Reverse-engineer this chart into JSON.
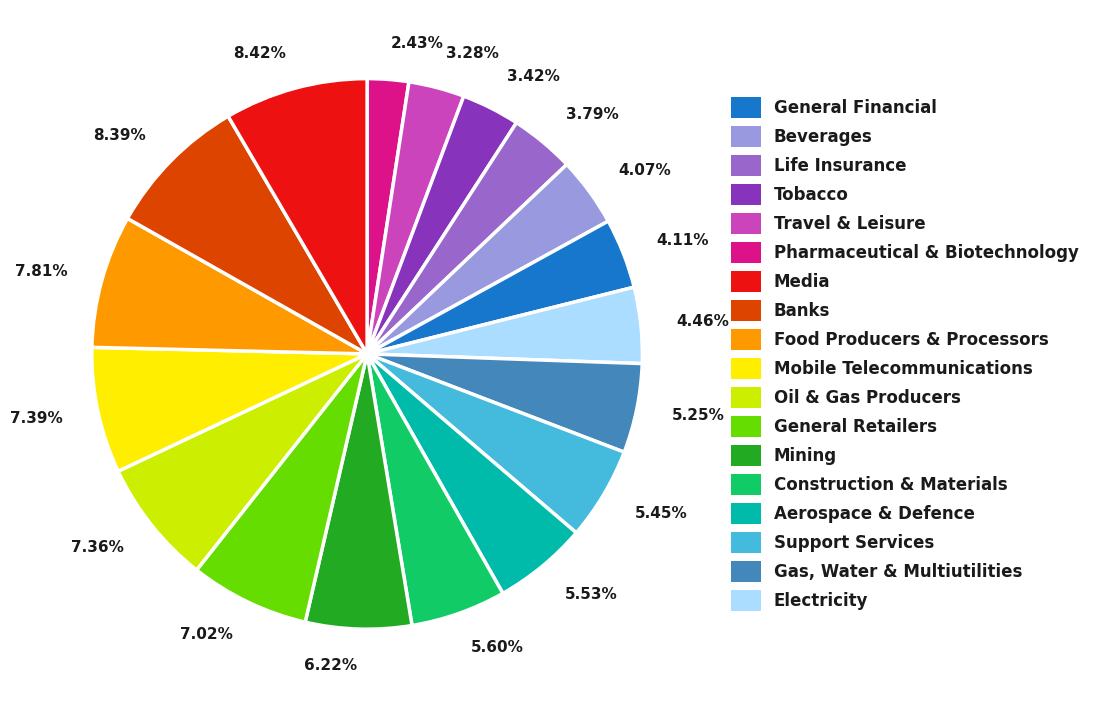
{
  "sectors": [
    {
      "name": "General Financial",
      "value": 4.11,
      "color": "#1777cc"
    },
    {
      "name": "Beverages",
      "value": 4.07,
      "color": "#9999e0"
    },
    {
      "name": "Life Insurance",
      "value": 3.79,
      "color": "#9966cc"
    },
    {
      "name": "Tobacco",
      "value": 3.42,
      "color": "#8833bb"
    },
    {
      "name": "Travel & Leisure",
      "value": 3.28,
      "color": "#cc44bb"
    },
    {
      "name": "Pharmaceutical & Biotechnology",
      "value": 2.43,
      "color": "#dd1188"
    },
    {
      "name": "Media",
      "value": 8.42,
      "color": "#ee1111"
    },
    {
      "name": "Banks",
      "value": 8.39,
      "color": "#dd4400"
    },
    {
      "name": "Food Producers & Processors",
      "value": 7.81,
      "color": "#ff9900"
    },
    {
      "name": "Mobile Telecommunications",
      "value": 7.39,
      "color": "#ffee00"
    },
    {
      "name": "Oil & Gas Producers",
      "value": 7.36,
      "color": "#ccee00"
    },
    {
      "name": "General Retailers",
      "value": 7.02,
      "color": "#66dd00"
    },
    {
      "name": "Mining",
      "value": 6.22,
      "color": "#22aa22"
    },
    {
      "name": "Construction & Materials",
      "value": 5.6,
      "color": "#11cc66"
    },
    {
      "name": "Aerospace & Defence",
      "value": 5.53,
      "color": "#00bbaa"
    },
    {
      "name": "Support Services",
      "value": 5.45,
      "color": "#44bbdd"
    },
    {
      "name": "Gas, Water & Multiutilities",
      "value": 5.25,
      "color": "#4488bb"
    },
    {
      "name": "Electricity",
      "value": 4.46,
      "color": "#aaddff"
    }
  ],
  "background_color": "#ffffff",
  "wedge_edge_color": "#ffffff",
  "wedge_edge_width": 2.5,
  "label_fontsize": 11,
  "legend_fontsize": 12,
  "label_color": "#1a1a1a",
  "startangle": 90
}
